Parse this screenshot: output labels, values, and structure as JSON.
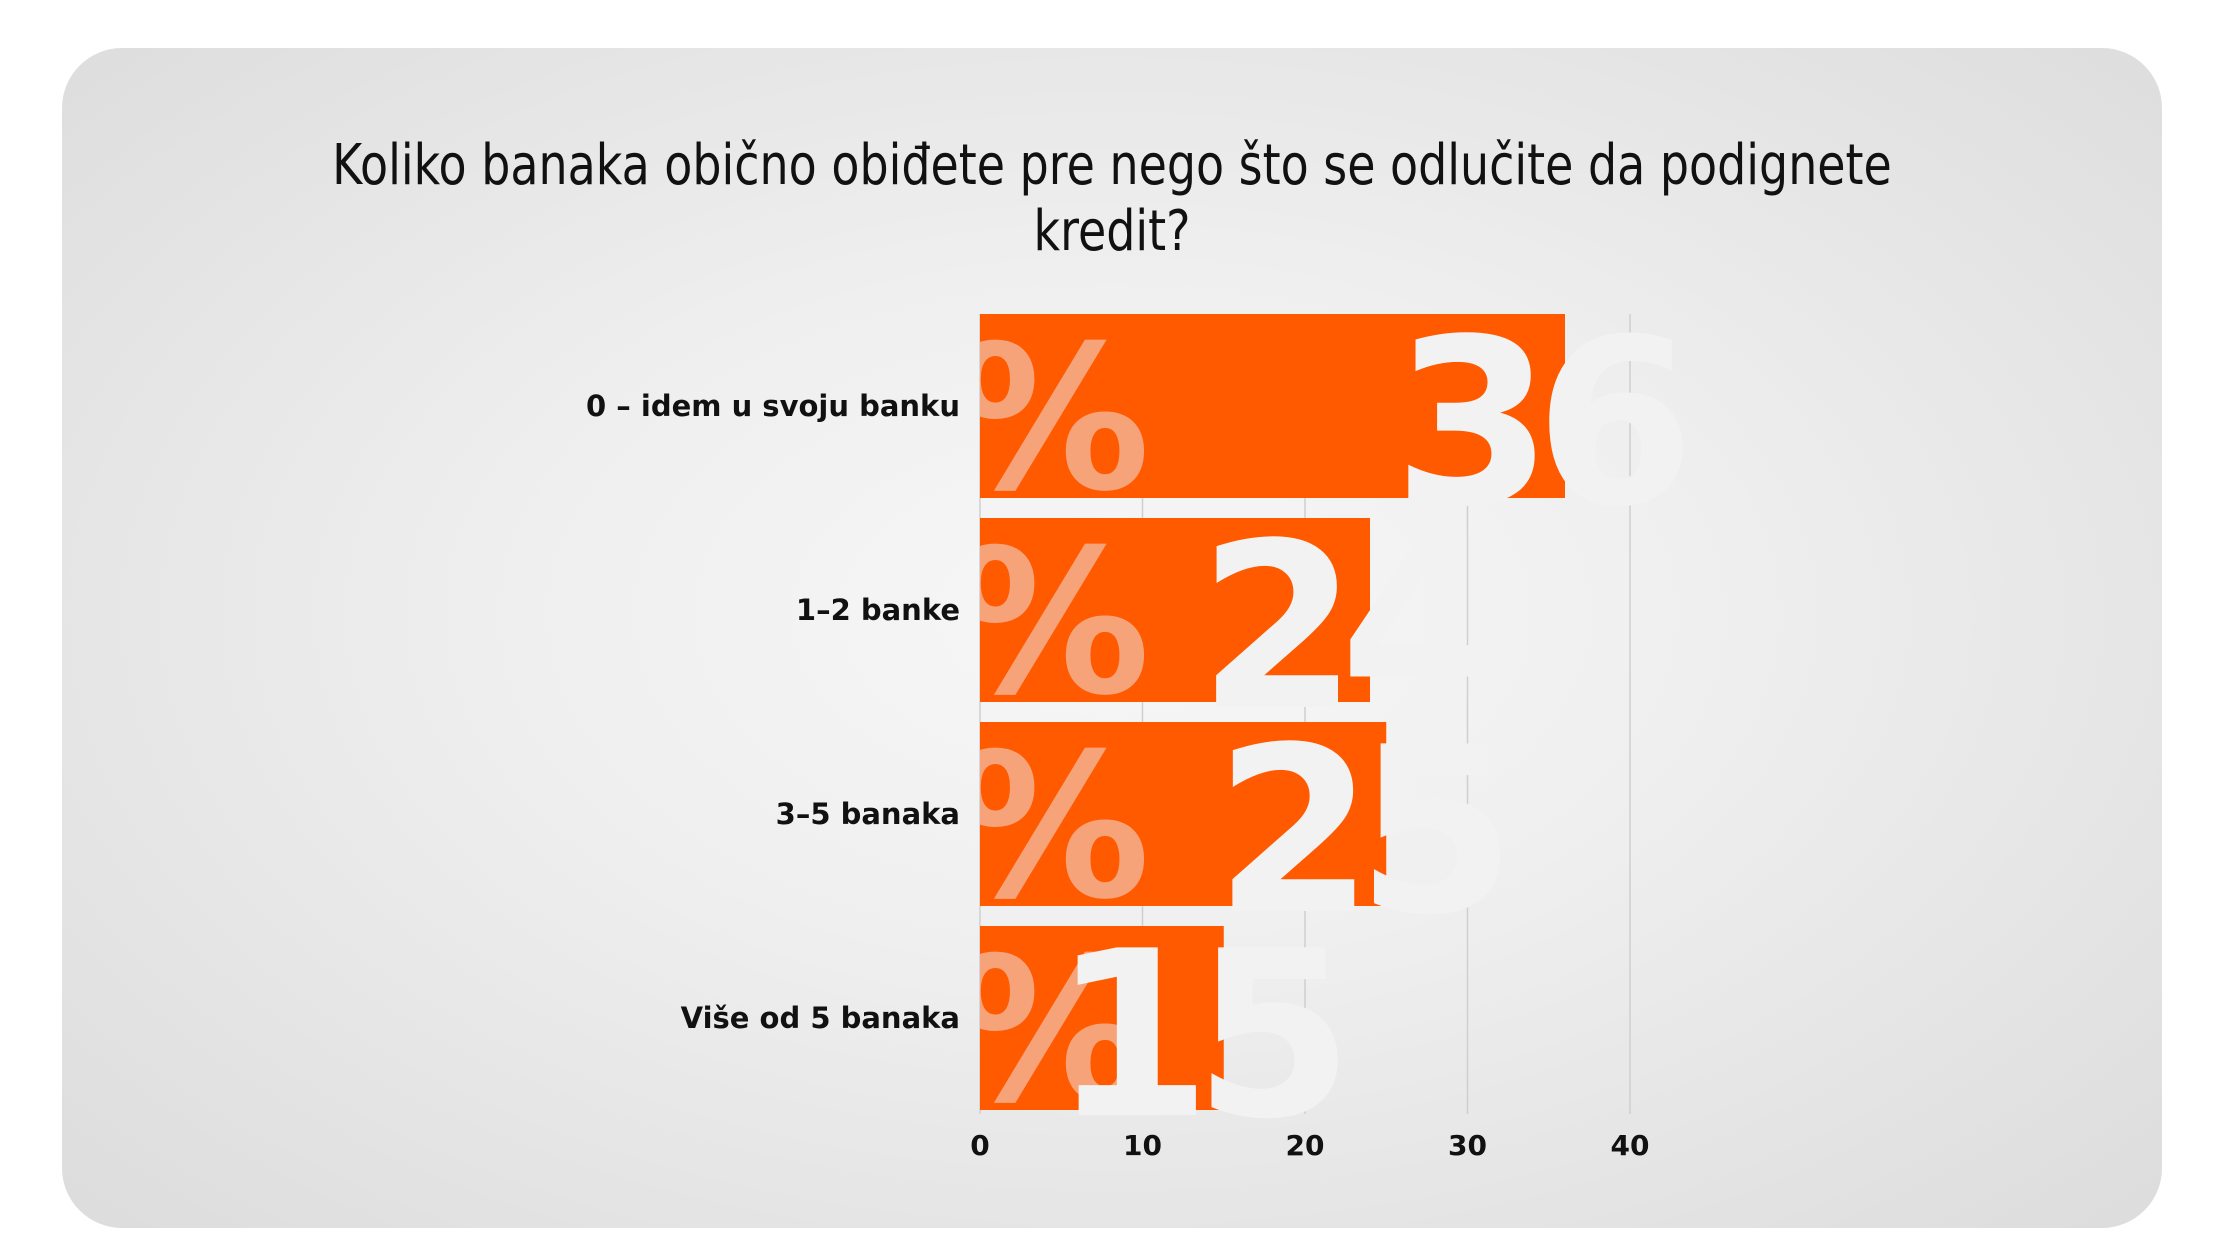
{
  "chart_data": {
    "type": "bar",
    "orientation": "horizontal",
    "title": "Koliko banaka obično obiđete pre nego što se odlučite da podignete kredit?",
    "categories": [
      "0 – idem u svoju banku",
      "1–2 banke",
      "3–5 banaka",
      "Više od 5 banaka"
    ],
    "values": [
      36,
      24,
      25,
      15
    ],
    "value_suffix": "%",
    "xlim": [
      0,
      40
    ],
    "xticks": [
      "0",
      "10",
      "20",
      "30",
      "40"
    ],
    "grid": true,
    "legend": "none",
    "colors": {
      "bar": "#ff5a00",
      "value_text": "#f2f2f2",
      "percent_text": "#f6a37a",
      "background": "#eeeeee"
    }
  }
}
